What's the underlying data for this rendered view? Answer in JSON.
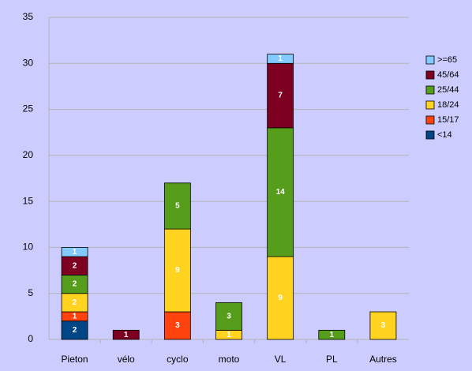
{
  "chart_data": {
    "type": "stacked_bar",
    "categories": [
      "Pieton",
      "vélo",
      "cyclo",
      "moto",
      "VL",
      "PL",
      "Autres"
    ],
    "series": [
      {
        "name": "<14",
        "color": "#004586",
        "values": [
          2,
          null,
          null,
          null,
          null,
          null,
          null
        ]
      },
      {
        "name": "15/17",
        "color": "#ff420e",
        "values": [
          1,
          null,
          3,
          null,
          null,
          null,
          null
        ]
      },
      {
        "name": "18/24",
        "color": "#ffd320",
        "values": [
          2,
          null,
          9,
          1,
          9,
          null,
          3
        ]
      },
      {
        "name": "25/44",
        "color": "#579d1c",
        "values": [
          2,
          null,
          5,
          3,
          14,
          1,
          null
        ]
      },
      {
        "name": "45/64",
        "color": "#7e0021",
        "values": [
          2,
          1,
          null,
          null,
          7,
          null,
          null
        ]
      },
      {
        "name": ">=65",
        "color": "#83caff",
        "values": [
          1,
          null,
          null,
          null,
          1,
          null,
          null
        ]
      }
    ],
    "ylim": [
      0,
      35
    ],
    "yticks": [
      0,
      5,
      10,
      15,
      20,
      25,
      30,
      35
    ],
    "grid": true,
    "legend": "right"
  }
}
